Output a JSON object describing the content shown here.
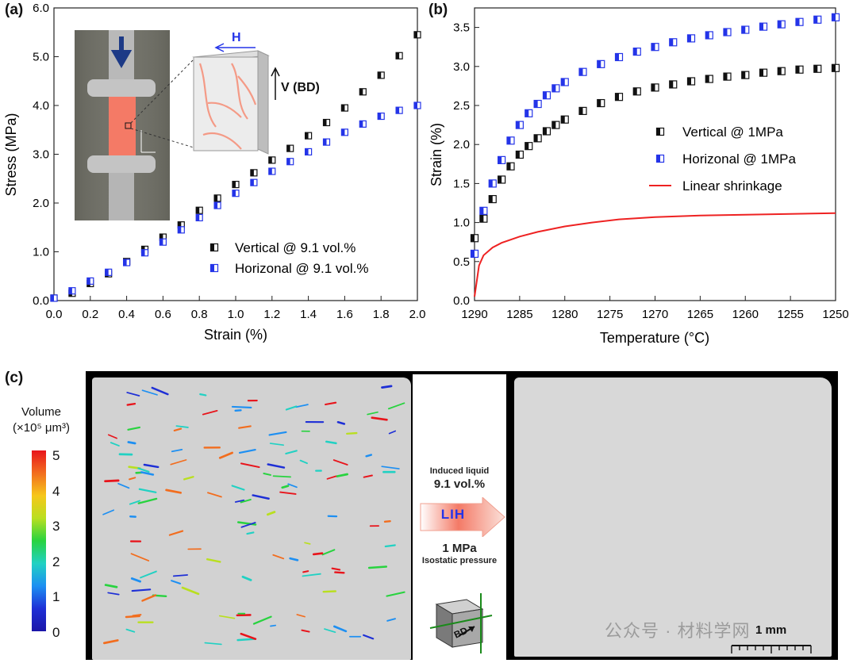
{
  "panel_labels": {
    "a": "(a)",
    "b": "(b)",
    "c": "(c)"
  },
  "chart_data": [
    {
      "type": "scatter",
      "panel": "(a)",
      "xlabel": "Strain (%)",
      "ylabel": "Stress (MPa)",
      "xlim": [
        0.0,
        2.0
      ],
      "ylim": [
        0.0,
        6.0
      ],
      "xticks": [
        "0.0",
        "0.2",
        "0.4",
        "0.6",
        "0.8",
        "1.0",
        "1.2",
        "1.4",
        "1.6",
        "1.8",
        "2.0"
      ],
      "yticks": [
        "0.0",
        "1.0",
        "2.0",
        "3.0",
        "4.0",
        "5.0",
        "6.0"
      ],
      "legend_position": "bottom-right",
      "series": [
        {
          "name": "Vertical @ 9.1 vol.%",
          "color": "#111111",
          "x": [
            0.0,
            0.1,
            0.2,
            0.3,
            0.4,
            0.5,
            0.6,
            0.7,
            0.8,
            0.9,
            1.0,
            1.1,
            1.2,
            1.3,
            1.4,
            1.5,
            1.6,
            1.7,
            1.8,
            1.9,
            2.0
          ],
          "y": [
            0.05,
            0.15,
            0.35,
            0.55,
            0.8,
            1.05,
            1.3,
            1.55,
            1.85,
            2.1,
            2.38,
            2.62,
            2.88,
            3.12,
            3.38,
            3.65,
            3.95,
            4.28,
            4.62,
            5.02,
            5.45
          ]
        },
        {
          "name": "Horizonal @ 9.1 vol.%",
          "color": "#2434e8",
          "x": [
            0.0,
            0.1,
            0.2,
            0.3,
            0.4,
            0.5,
            0.6,
            0.7,
            0.8,
            0.9,
            1.0,
            1.1,
            1.2,
            1.3,
            1.4,
            1.5,
            1.6,
            1.7,
            1.8,
            1.9,
            2.0
          ],
          "y": [
            0.05,
            0.2,
            0.4,
            0.58,
            0.78,
            0.98,
            1.2,
            1.45,
            1.7,
            1.95,
            2.2,
            2.42,
            2.65,
            2.85,
            3.05,
            3.25,
            3.45,
            3.62,
            3.78,
            3.9,
            4.0
          ]
        }
      ]
    },
    {
      "type": "scatter",
      "panel": "(b)",
      "xlabel": "Temperature (°C)",
      "ylabel": "Strain (%)",
      "xlim": [
        1290,
        1250
      ],
      "ylim": [
        0.0,
        3.75
      ],
      "xticks": [
        "1290",
        "1285",
        "1280",
        "1275",
        "1270",
        "1265",
        "1260",
        "1255",
        "1250"
      ],
      "yticks": [
        "0.0",
        "0.5",
        "1.0",
        "1.5",
        "2.0",
        "2.5",
        "3.0",
        "3.5"
      ],
      "legend_position": "center-right",
      "series": [
        {
          "name": "Vertical @ 1MPa",
          "color": "#111111",
          "marker": "half-square",
          "x": [
            1290,
            1289,
            1288,
            1287,
            1286,
            1285,
            1284,
            1283,
            1282,
            1281,
            1280,
            1278,
            1276,
            1274,
            1272,
            1270,
            1268,
            1266,
            1264,
            1262,
            1260,
            1258,
            1256,
            1254,
            1252,
            1250
          ],
          "y": [
            0.8,
            1.05,
            1.3,
            1.55,
            1.72,
            1.87,
            1.98,
            2.08,
            2.17,
            2.25,
            2.32,
            2.43,
            2.53,
            2.61,
            2.68,
            2.73,
            2.77,
            2.81,
            2.84,
            2.87,
            2.89,
            2.92,
            2.94,
            2.96,
            2.97,
            2.98
          ]
        },
        {
          "name": "Horizonal @ 1MPa",
          "color": "#2434e8",
          "marker": "half-square",
          "x": [
            1290,
            1289,
            1288,
            1287,
            1286,
            1285,
            1284,
            1283,
            1282,
            1281,
            1280,
            1278,
            1276,
            1274,
            1272,
            1270,
            1268,
            1266,
            1264,
            1262,
            1260,
            1258,
            1256,
            1254,
            1252,
            1250
          ],
          "y": [
            0.6,
            1.15,
            1.5,
            1.8,
            2.05,
            2.25,
            2.4,
            2.52,
            2.63,
            2.72,
            2.8,
            2.93,
            3.03,
            3.12,
            3.19,
            3.25,
            3.31,
            3.36,
            3.4,
            3.44,
            3.47,
            3.51,
            3.54,
            3.57,
            3.6,
            3.63
          ]
        },
        {
          "name": "Linear shrinkage",
          "color": "#ee2222",
          "marker": "line",
          "x": [
            1290,
            1289.5,
            1289,
            1288,
            1287,
            1285,
            1283,
            1280,
            1277,
            1274,
            1270,
            1265,
            1260,
            1255,
            1250
          ],
          "y": [
            0.05,
            0.45,
            0.58,
            0.68,
            0.74,
            0.82,
            0.88,
            0.95,
            1.0,
            1.04,
            1.07,
            1.09,
            1.1,
            1.11,
            1.12
          ]
        }
      ]
    }
  ],
  "panel_a_inset": {
    "h_label": "H",
    "v_label": "V (BD)"
  },
  "panel_c": {
    "volume_title_line1": "Volume",
    "volume_title_line2": "(×10⁵ μm³)",
    "colorbar_ticks": [
      "5",
      "4",
      "3",
      "2",
      "1",
      "0"
    ],
    "mid_text_1": "Induced liquid",
    "mid_text_2": "9.1 vol.%",
    "arrow_label": "LIH",
    "mid_text_3": "1 MPa",
    "mid_text_4": "Isostatic pressure",
    "cube_label": "BD",
    "scale_bar": "1 mm",
    "watermark": "公众号 · 材料学网"
  }
}
